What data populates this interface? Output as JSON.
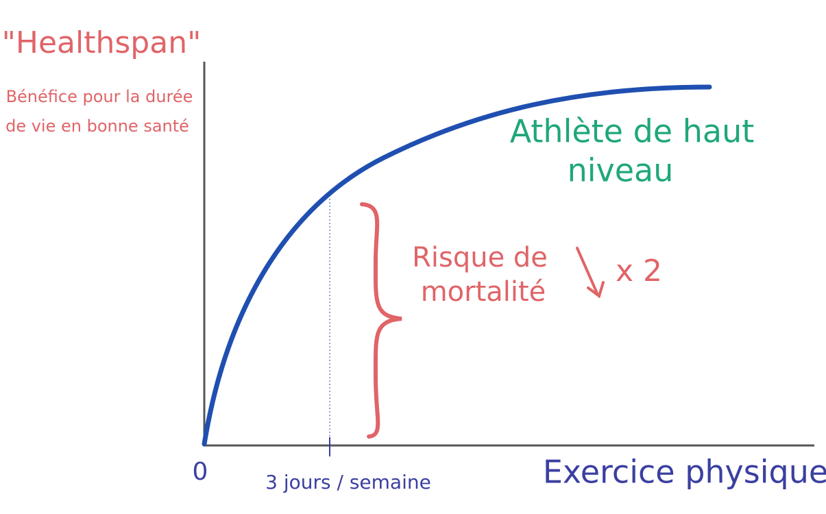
{
  "y_axis": {
    "title": "\"Healthspan\"",
    "subtitle": [
      "Bénéfice pour la durée",
      "de vie en bonne santé"
    ]
  },
  "x_axis": {
    "title": "Exercice physique",
    "origin": "0",
    "marker": "3 jours / semaine"
  },
  "annotations": {
    "athlete": [
      "Athlète de haut",
      "niveau"
    ],
    "risk": [
      "Risque de",
      "mortalité"
    ],
    "factor": "x 2"
  }
}
